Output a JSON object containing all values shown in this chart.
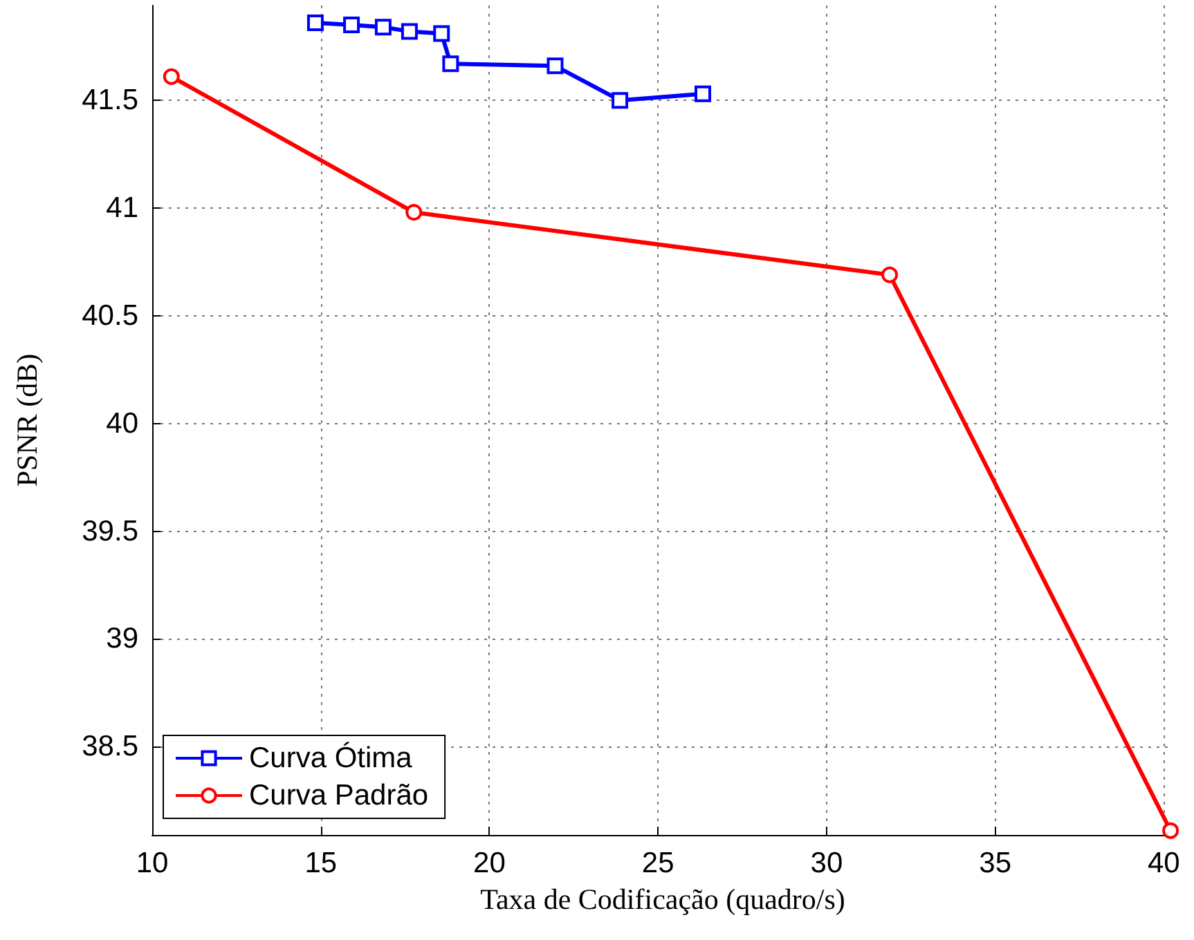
{
  "chart_data": {
    "type": "line",
    "xlabel": "Taxa de Codificação (quadro/s)",
    "ylabel": "PSNR (dB)",
    "xlim": [
      10,
      40.28
    ],
    "xticks": [
      10,
      15,
      20,
      25,
      30,
      35,
      40
    ],
    "ylim": [
      38.09,
      41.94
    ],
    "yticks": [
      38.5,
      39,
      39.5,
      40,
      40.5,
      41,
      41.5
    ],
    "grid": true,
    "legend": "bottom left",
    "series": [
      {
        "name": "Curva Ótima",
        "color": "#0000ff",
        "marker": "square",
        "x": [
          14.84,
          15.91,
          16.85,
          17.63,
          18.58,
          18.85,
          21.95,
          23.87,
          26.33
        ],
        "values": [
          41.86,
          41.85,
          41.84,
          41.82,
          41.81,
          41.67,
          41.66,
          41.5,
          41.53
        ]
      },
      {
        "name": "Curva Padrão",
        "color": "#ff0000",
        "marker": "circle",
        "x": [
          10.57,
          17.76,
          31.87,
          40.2
        ],
        "values": [
          41.61,
          40.98,
          40.69,
          38.11
        ]
      }
    ]
  }
}
